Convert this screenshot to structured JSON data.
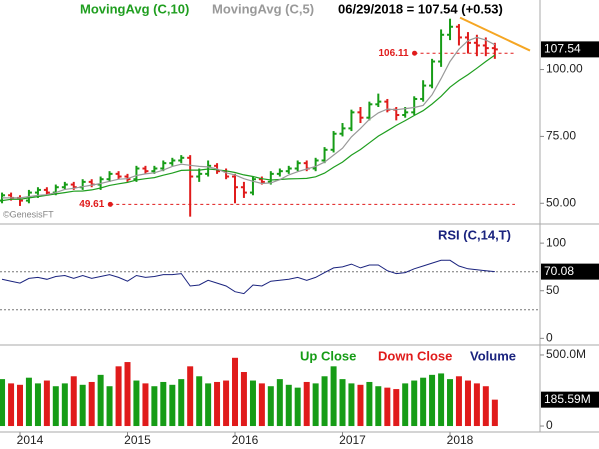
{
  "chart_data": [
    {
      "type": "ohlc",
      "title": "06/29/2018 = 107.54 (+0.53)",
      "source": "©GenesisFT",
      "up_color": "#169c16",
      "down_color": "#e01b1b",
      "x": [
        2013.833,
        2013.917,
        2014,
        2014.083,
        2014.167,
        2014.25,
        2014.333,
        2014.417,
        2014.5,
        2014.583,
        2014.667,
        2014.75,
        2014.833,
        2014.917,
        2015,
        2015.083,
        2015.167,
        2015.25,
        2015.333,
        2015.417,
        2015.5,
        2015.583,
        2015.667,
        2015.75,
        2015.833,
        2015.917,
        2016,
        2016.083,
        2016.167,
        2016.25,
        2016.333,
        2016.417,
        2016.5,
        2016.583,
        2016.667,
        2016.75,
        2016.833,
        2016.917,
        2017,
        2017.083,
        2017.167,
        2017.25,
        2017.333,
        2017.417,
        2017.5,
        2017.583,
        2017.667,
        2017.75,
        2017.833,
        2017.917,
        2018,
        2018.083,
        2018.167,
        2018.25,
        2018.333,
        2018.417
      ],
      "open": [
        51,
        53,
        52,
        51,
        54,
        55,
        54,
        56,
        57,
        56,
        58,
        57,
        59,
        61,
        60,
        59,
        63,
        62,
        63,
        65,
        66,
        67,
        60,
        61,
        64,
        62,
        60,
        56,
        54,
        59,
        58,
        61,
        62,
        63,
        65,
        63,
        66,
        70,
        76,
        78,
        84,
        82,
        87,
        88,
        85,
        83,
        84,
        89,
        94,
        103,
        113,
        116,
        112,
        110,
        109,
        108
      ],
      "high": [
        54,
        54,
        53,
        55,
        56,
        56,
        57,
        58,
        58,
        59,
        59,
        60,
        62,
        62,
        61,
        64,
        64,
        64,
        66,
        67,
        68,
        68,
        63,
        66,
        65,
        63,
        61,
        58,
        60,
        60,
        62,
        63,
        64,
        66,
        66,
        67,
        71,
        77,
        80,
        85,
        86,
        88,
        91,
        89,
        86,
        86,
        90,
        96,
        104,
        115,
        119,
        117,
        114,
        113,
        112,
        110
      ],
      "low": [
        50,
        51,
        49,
        50,
        52,
        53,
        53,
        55,
        55,
        55,
        56,
        55,
        58,
        59,
        58,
        58,
        61,
        61,
        62,
        64,
        65,
        45,
        58,
        60,
        61,
        59,
        50,
        52,
        53,
        57,
        57,
        60,
        61,
        62,
        62,
        62,
        65,
        69,
        75,
        77,
        80,
        81,
        86,
        84,
        81,
        82,
        83,
        88,
        93,
        101,
        111,
        109,
        106,
        105,
        105,
        104
      ],
      "close": [
        53,
        52,
        51,
        54,
        55,
        54,
        56,
        57,
        56,
        58,
        57,
        59,
        61,
        60,
        59,
        63,
        62,
        63,
        65,
        66,
        67,
        60,
        61,
        64,
        62,
        60,
        56,
        54,
        59,
        58,
        61,
        62,
        63,
        65,
        63,
        66,
        70,
        76,
        78,
        84,
        82,
        87,
        88,
        85,
        83,
        84,
        89,
        94,
        103,
        113,
        116,
        112,
        110,
        109,
        108,
        107.54
      ],
      "series": [
        {
          "name": "MovingAvg (C,10)",
          "color": "#1f9e1f",
          "values": [
            51,
            51.5,
            51.5,
            52,
            52.5,
            53,
            53.5,
            54,
            54.5,
            54.6,
            55,
            55.7,
            56.7,
            57.3,
            57.8,
            58.7,
            59.2,
            59.6,
            60.5,
            61.3,
            62.3,
            62.4,
            62.4,
            62.8,
            62.5,
            62.1,
            61.5,
            60.6,
            60,
            59.2,
            58.7,
            58.9,
            59.1,
            59.2,
            59.3,
            59.9,
            61.3,
            63.5,
            65.4,
            68,
            70.1,
            72.6,
            75.1,
            77.1,
            79.1,
            80.9,
            82.8,
            84.6,
            87.1,
            90,
            93.4,
            95.9,
            98.1,
            100.5,
            103,
            105.4
          ]
        },
        {
          "name": "MovingAvg (C,5)",
          "color": "#999999",
          "values": [
            52,
            52,
            52,
            52.5,
            53,
            53.2,
            54,
            55.2,
            55.6,
            56.2,
            56.8,
            57.4,
            58.2,
            59,
            59.2,
            60.4,
            61,
            61.4,
            62.4,
            63.8,
            64.6,
            64.2,
            63.8,
            63.6,
            62.8,
            61.4,
            60.6,
            59.2,
            58.2,
            57.4,
            57.6,
            58.8,
            60.6,
            61.8,
            62.8,
            63.8,
            65.4,
            68,
            70.6,
            74.8,
            78,
            81.4,
            83.8,
            85.2,
            85,
            85.4,
            85.8,
            86.6,
            90.6,
            96.6,
            103,
            107.6,
            110.8,
            112,
            111,
            109.3
          ]
        }
      ],
      "annotations": [
        {
          "x": 2017.67,
          "value": 106.11
        },
        {
          "x": 2014.84,
          "value": 49.61
        }
      ],
      "annotation_color": "#e01b1b",
      "trendline": {
        "x": [
          2018.093,
          2018.744
        ],
        "y": [
          119.4,
          107.1
        ],
        "color": "#f5a623"
      },
      "last_label": {
        "value": 107.54,
        "label": "107.54"
      },
      "xlim": [
        2013.814,
        2018.837
      ],
      "ylim": [
        43,
        126
      ],
      "yticks": [
        {
          "value": 50,
          "label": "50.00"
        },
        {
          "value": 75,
          "label": "75.00"
        },
        {
          "value": 100,
          "label": "100.00"
        }
      ]
    },
    {
      "type": "line",
      "title": "RSI (C,14,T)",
      "color": "#1a237e",
      "values": [
        62,
        60,
        58,
        63,
        64,
        62,
        65,
        66,
        63,
        66,
        63,
        65,
        67,
        64,
        60,
        66,
        64,
        65,
        67,
        67,
        68,
        55,
        56,
        61,
        58,
        55,
        49,
        47,
        56,
        55,
        60,
        61,
        62,
        64,
        61,
        64,
        69,
        74,
        75,
        78,
        74,
        77,
        77,
        71,
        68,
        69,
        73,
        76,
        79,
        82,
        82,
        76,
        73,
        72,
        71,
        70.08
      ],
      "levels": [
        70,
        30
      ],
      "last_label": {
        "value": 70.08,
        "label": "70.08"
      },
      "ylim": [
        -7,
        118
      ],
      "yticks": [
        0,
        50,
        100
      ]
    },
    {
      "type": "bar",
      "legend": [
        "Up Close",
        "Down Close",
        "Volume"
      ],
      "legend_colors": [
        "#169c16",
        "#e01b1b",
        "#1a237e"
      ],
      "values": [
        330,
        300,
        290,
        340,
        300,
        320,
        280,
        300,
        350,
        290,
        310,
        360,
        280,
        420,
        450,
        320,
        300,
        280,
        310,
        290,
        330,
        420,
        350,
        300,
        310,
        320,
        480,
        380,
        320,
        300,
        280,
        330,
        290,
        270,
        310,
        300,
        350,
        420,
        330,
        300,
        290,
        310,
        280,
        270,
        260,
        300,
        320,
        340,
        360,
        370,
        330,
        350,
        320,
        300,
        280,
        185.59
      ],
      "last_label": {
        "value": 185.59,
        "label": "185.59M"
      },
      "ylim": [
        -42,
        570
      ],
      "yticks": [
        0,
        {
          "value": 500,
          "label": "500.0M"
        }
      ],
      "xticks": [
        2014,
        2015,
        2016,
        2017,
        2018
      ]
    }
  ]
}
